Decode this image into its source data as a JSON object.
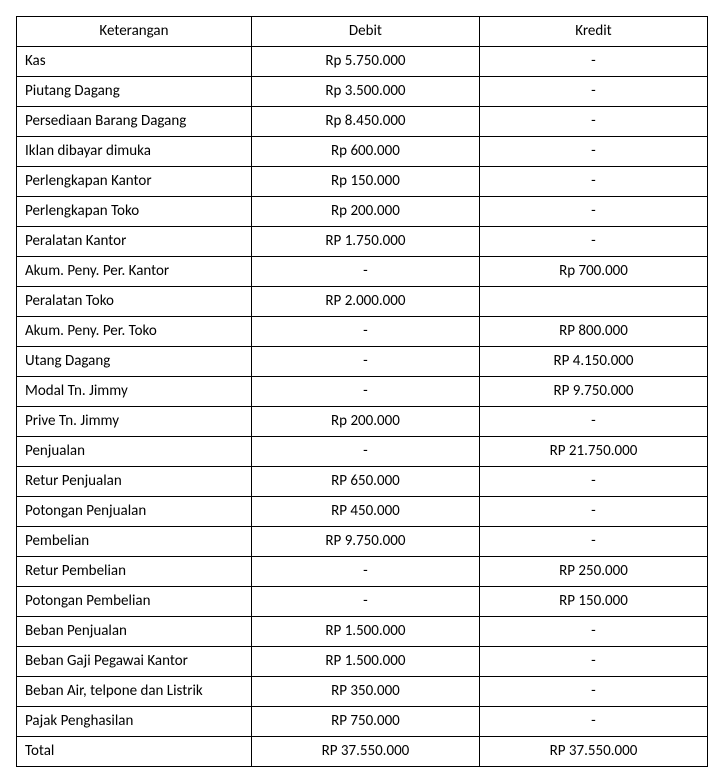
{
  "table": {
    "columns": [
      {
        "key": "keterangan",
        "label": "Keterangan"
      },
      {
        "key": "debit",
        "label": "Debit"
      },
      {
        "key": "kredit",
        "label": "Kredit"
      }
    ],
    "rows": [
      {
        "keterangan": "Kas",
        "debit": "Rp 5.750.000",
        "kredit": "-"
      },
      {
        "keterangan": "Piutang Dagang",
        "debit": "Rp 3.500.000",
        "kredit": "-"
      },
      {
        "keterangan": "Persediaan Barang Dagang",
        "debit": "Rp 8.450.000",
        "kredit": "-"
      },
      {
        "keterangan": "Iklan dibayar dimuka",
        "debit": "Rp 600.000",
        "kredit": "-"
      },
      {
        "keterangan": "Perlengkapan Kantor",
        "debit": "Rp 150.000",
        "kredit": "-"
      },
      {
        "keterangan": "Perlengkapan Toko",
        "debit": "Rp 200.000",
        "kredit": "-"
      },
      {
        "keterangan": "Peralatan Kantor",
        "debit": "RP 1.750.000",
        "kredit": "-"
      },
      {
        "keterangan": "Akum. Peny. Per. Kantor",
        "debit": "-",
        "kredit": "Rp 700.000"
      },
      {
        "keterangan": "Peralatan Toko",
        "debit": "RP 2.000.000",
        "kredit": ""
      },
      {
        "keterangan": "Akum. Peny. Per. Toko",
        "debit": "-",
        "kredit": "RP 800.000"
      },
      {
        "keterangan": "Utang Dagang",
        "debit": "-",
        "kredit": "RP 4.150.000"
      },
      {
        "keterangan": "Modal Tn. Jimmy",
        "debit": "-",
        "kredit": "RP 9.750.000"
      },
      {
        "keterangan": "Prive Tn. Jimmy",
        "debit": "Rp 200.000",
        "kredit": "-"
      },
      {
        "keterangan": "Penjualan",
        "debit": "-",
        "kredit": "RP 21.750.000"
      },
      {
        "keterangan": "Retur Penjualan",
        "debit": "RP 650.000",
        "kredit": "-"
      },
      {
        "keterangan": "Potongan Penjualan",
        "debit": "RP 450.000",
        "kredit": "-"
      },
      {
        "keterangan": "Pembelian",
        "debit": "RP 9.750.000",
        "kredit": "-"
      },
      {
        "keterangan": "Retur Pembelian",
        "debit": "-",
        "kredit": "RP 250.000"
      },
      {
        "keterangan": "Potongan Pembelian",
        "debit": "-",
        "kredit": "RP 150.000"
      },
      {
        "keterangan": "Beban Penjualan",
        "debit": "RP 1.500.000",
        "kredit": "-"
      },
      {
        "keterangan": "Beban Gaji Pegawai Kantor",
        "debit": "RP 1.500.000",
        "kredit": "-"
      },
      {
        "keterangan": "Beban Air, telpone dan Listrik",
        "debit": "RP 350.000",
        "kredit": "-"
      },
      {
        "keterangan": "Pajak Penghasilan",
        "debit": "RP 750.000",
        "kredit": "-"
      },
      {
        "keterangan": "Total",
        "debit": "RP 37.550.000",
        "kredit": "RP 37.550.000"
      }
    ],
    "styling": {
      "border_color": "#000000",
      "background_color": "#ffffff",
      "text_color": "#000000",
      "font_family": "Calibri",
      "font_size_pt": 11,
      "column_widths_pct": [
        34,
        33,
        33
      ],
      "header_align": "center",
      "keterangan_align": "left",
      "value_align": "center"
    }
  }
}
